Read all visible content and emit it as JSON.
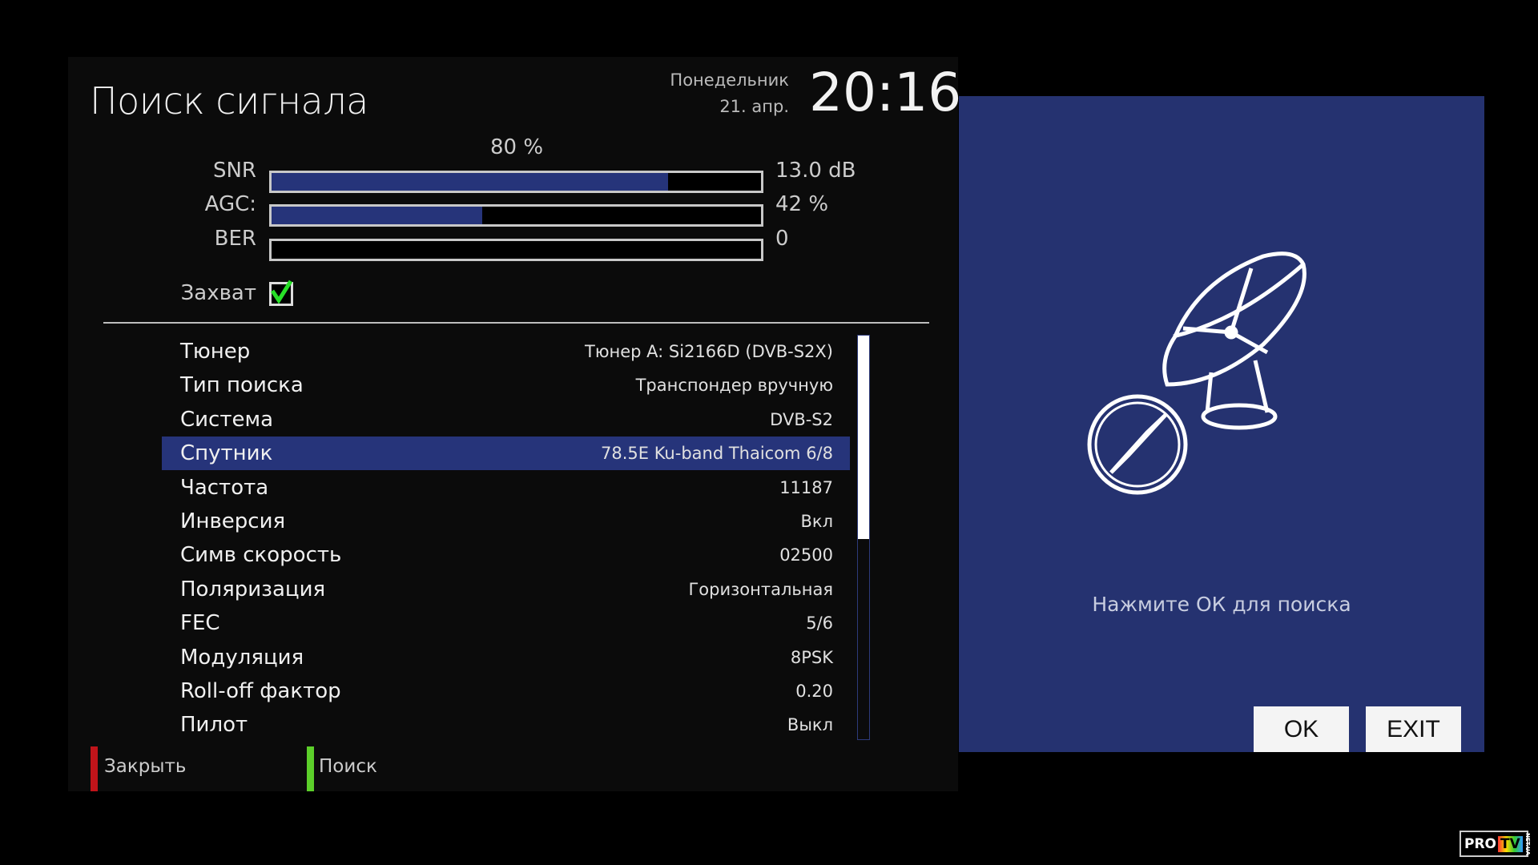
{
  "header": {
    "title": "Поиск сигнала",
    "day": "Понедельник",
    "date": "21. апр.",
    "time": "20:16"
  },
  "signal": {
    "quality": "80 %",
    "quality_value": 80,
    "meters": [
      {
        "label": "SNR",
        "value": "13.0 dB",
        "fill": 0.81
      },
      {
        "label": "AGC:",
        "value": "42 %",
        "fill": 0.43
      },
      {
        "label": "BER",
        "value": "0",
        "fill": 0
      }
    ],
    "lock_label": "Захват",
    "locked": true
  },
  "settings": [
    {
      "label": "Тюнер",
      "value": "Тюнер A: Si2166D (DVB-S2X)"
    },
    {
      "label": "Тип поиска",
      "value": "Транспондер вручную"
    },
    {
      "label": "Система",
      "value": "DVB-S2"
    },
    {
      "label": "Спутник",
      "value": "78.5E Ku-band Thaicom 6/8",
      "selected": true
    },
    {
      "label": "Частота",
      "value": "11187"
    },
    {
      "label": "Инверсия",
      "value": "Вкл"
    },
    {
      "label": "Симв скорость",
      "value": "02500"
    },
    {
      "label": "Поляризация",
      "value": "Горизонтальная"
    },
    {
      "label": "FEC",
      "value": "5/6"
    },
    {
      "label": "Модуляция",
      "value": "8PSK"
    },
    {
      "label": "Roll-off фактор",
      "value": "0.20"
    },
    {
      "label": "Пилот",
      "value": "Выкл"
    }
  ],
  "footer": {
    "red_label": "Закрыть",
    "green_label": "Поиск",
    "red_color": "#c0141a",
    "green_color": "#5ccf2a"
  },
  "dialog": {
    "icon": "satellite-dish-compass-icon",
    "hint": "Нажмите ОК для поиска",
    "ok_label": "OK",
    "exit_label": "EXIT",
    "bg_color": "#253270"
  },
  "watermark": {
    "text": "PRO TV NET.UA"
  },
  "colors": {
    "accent": "#26347a",
    "panel": "#0b0b0b"
  }
}
